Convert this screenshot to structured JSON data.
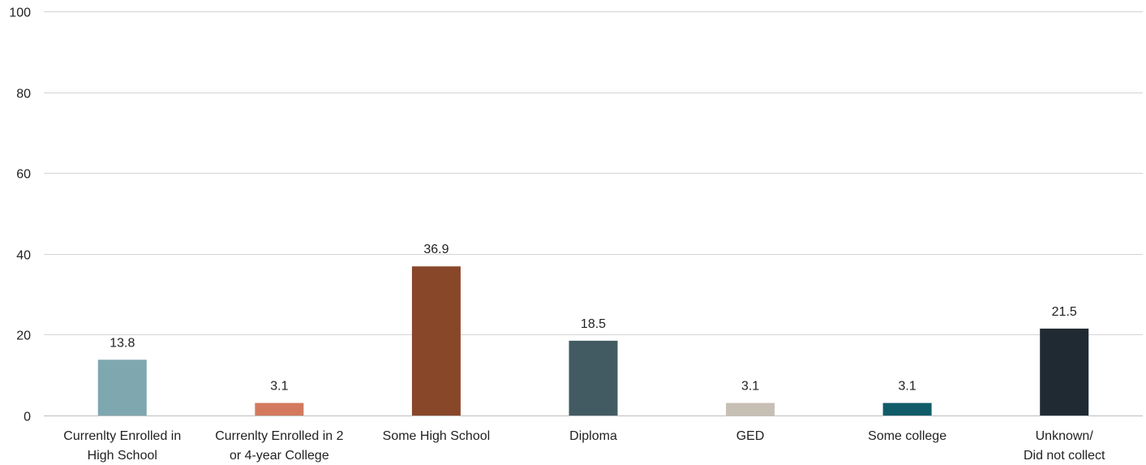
{
  "chart_data": {
    "type": "bar",
    "categories": [
      [
        "Currenlty Enrolled in",
        "High School"
      ],
      [
        "Currenlty Enrolled in 2",
        "or 4-year College"
      ],
      [
        "Some High School"
      ],
      [
        "Diploma"
      ],
      [
        "GED"
      ],
      [
        "Some college"
      ],
      [
        "Unknown/",
        "Did not collect"
      ]
    ],
    "values": [
      13.8,
      3.1,
      36.9,
      18.5,
      3.1,
      3.1,
      21.5
    ],
    "value_labels": [
      "13.8",
      "3.1",
      "36.9",
      "18.5",
      "3.1",
      "3.1",
      "21.5"
    ],
    "colors": [
      "#7ea7b0",
      "#d37a5e",
      "#89472a",
      "#425b62",
      "#c8bfb4",
      "#0f5c68",
      "#1f2a33"
    ],
    "ylim": [
      0,
      100
    ],
    "yticks": [
      0,
      20,
      40,
      60,
      80,
      100
    ],
    "grid": true,
    "title": "",
    "xlabel": "",
    "ylabel": ""
  }
}
